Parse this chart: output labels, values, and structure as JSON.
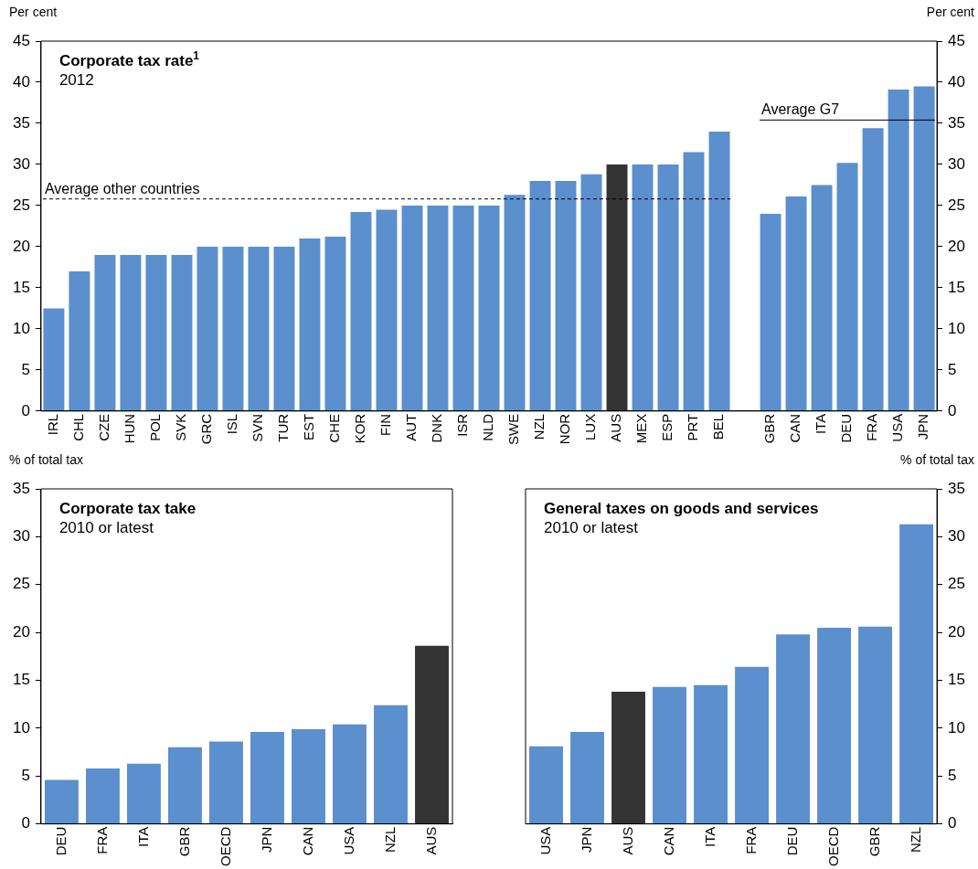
{
  "chart_data": [
    {
      "type": "bar",
      "title": "Corporate tax rate$^{1}$",
      "subtitle": "2012",
      "ylabel": "Per cent",
      "y2label": "Per cent",
      "categories": [
        "IRL",
        "CHL",
        "CZE",
        "HUN",
        "POL",
        "SVK",
        "GRC",
        "ISL",
        "SVN",
        "TUR",
        "EST",
        "CHE",
        "KOR",
        "FIN",
        "AUT",
        "DNK",
        "ISR",
        "NLD",
        "SWE",
        "NZL",
        "NOR",
        "LUX",
        "AUS",
        "MEX",
        "ESP",
        "PRT",
        "BEL",
        null,
        "GBR",
        "CAN",
        "ITA",
        "DEU",
        "FRA",
        "USA",
        "JPN"
      ],
      "values": [
        12.5,
        17,
        19,
        19,
        19,
        19,
        20,
        20,
        20,
        20,
        21,
        21.2,
        24.2,
        24.5,
        25,
        25,
        25,
        25,
        26.3,
        28,
        28,
        28.8,
        30,
        30,
        30,
        31.5,
        34,
        null,
        24,
        26.1,
        27.5,
        30.2,
        34.4,
        39.1,
        39.5
      ],
      "colors": [
        "#5b8fcd",
        "#5b8fcd",
        "#5b8fcd",
        "#5b8fcd",
        "#5b8fcd",
        "#5b8fcd",
        "#5b8fcd",
        "#5b8fcd",
        "#5b8fcd",
        "#5b8fcd",
        "#5b8fcd",
        "#5b8fcd",
        "#5b8fcd",
        "#5b8fcd",
        "#5b8fcd",
        "#5b8fcd",
        "#5b8fcd",
        "#5b8fcd",
        "#5b8fcd",
        "#5b8fcd",
        "#5b8fcd",
        "#5b8fcd",
        "#333333",
        "#5b8fcd",
        "#5b8fcd",
        "#5b8fcd",
        "#5b8fcd",
        "#5b8fcd",
        "#5b8fcd",
        "#5b8fcd",
        "#5b8fcd",
        "#5b8fcd",
        "#5b8fcd",
        "#5b8fcd",
        "#5b8fcd"
      ],
      "ylim": [
        0,
        45
      ],
      "yticks": [
        0,
        5,
        10,
        15,
        20,
        25,
        30,
        35,
        40,
        45
      ],
      "y2lim": [
        0,
        45
      ],
      "y2ticks": [
        0,
        5,
        10,
        15,
        20,
        25,
        30,
        35,
        40,
        45
      ],
      "ref_lines": [
        {
          "axis": "y",
          "value": 25.8,
          "label": "Average other countries",
          "line_style": "dashed",
          "color": "#000000"
        },
        {
          "axis": "y",
          "value": 35.4,
          "label": "Average G7",
          "line_style": "solid",
          "color": "#000000"
        }
      ],
      "grid": false,
      "legend": false
    },
    {
      "type": "bar",
      "title": "Corporate tax take",
      "subtitle": "2010 or latest",
      "ylabel": "% of total tax",
      "categories": [
        "DEU",
        "FRA",
        "ITA",
        "GBR",
        "OECD",
        "JPN",
        "CAN",
        "USA",
        "NZL",
        "AUS"
      ],
      "values": [
        4.6,
        5.8,
        6.3,
        8.0,
        8.6,
        9.6,
        9.9,
        10.4,
        12.4,
        18.6
      ],
      "colors": [
        "#5b8fcd",
        "#5b8fcd",
        "#5b8fcd",
        "#5b8fcd",
        "#5b8fcd",
        "#5b8fcd",
        "#5b8fcd",
        "#5b8fcd",
        "#5b8fcd",
        "#333333"
      ],
      "ylim": [
        0,
        35
      ],
      "yticks": [
        0,
        5,
        10,
        15,
        20,
        25,
        30,
        35
      ],
      "grid": false,
      "legend": false
    },
    {
      "type": "bar",
      "title": "General taxes on goods and services",
      "subtitle": "2010 or latest",
      "y2label": "% of total tax",
      "categories": [
        "USA",
        "JPN",
        "AUS",
        "CAN",
        "ITA",
        "FRA",
        "DEU",
        "OECD",
        "GBR",
        "NZL"
      ],
      "series": [
        {
          "axis": "y2",
          "values": [
            8.1,
            9.6,
            13.8,
            14.3,
            14.5,
            16.4,
            19.8,
            20.5,
            20.6,
            31.3
          ]
        }
      ],
      "colors": [
        "#5b8fcd",
        "#5b8fcd",
        "#333333",
        "#5b8fcd",
        "#5b8fcd",
        "#5b8fcd",
        "#5b8fcd",
        "#5b8fcd",
        "#5b8fcd",
        "#5b8fcd"
      ],
      "y2lim": [
        0,
        35
      ],
      "y2ticks": [
        0,
        5,
        10,
        15,
        20,
        25,
        30,
        35
      ],
      "grid": false,
      "legend": false
    }
  ]
}
